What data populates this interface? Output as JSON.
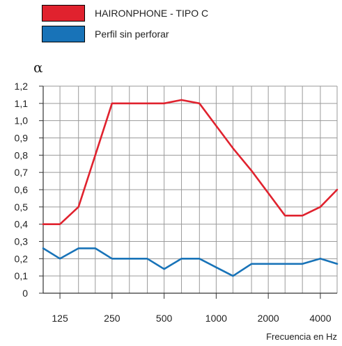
{
  "colors": {
    "red": "#e0222e",
    "blue": "#1873b8",
    "grid": "#9a9a9a",
    "axis": "#333333"
  },
  "chart_data": {
    "type": "line",
    "ylabel": "α",
    "xlabel": "Frecuencia en Hz",
    "ylim": [
      0,
      1.2
    ],
    "y_ticks": [
      "1,2",
      "1,1",
      "1,0",
      "0,9",
      "0,8",
      "0,7",
      "0,6",
      "0,5",
      "0,4",
      "0,3",
      "0,2",
      "0,1",
      "0"
    ],
    "x_tick_labels": [
      "125",
      "250",
      "500",
      "1000",
      "2000",
      "4000"
    ],
    "grid": true,
    "legend_position": "top-left",
    "x": [
      100,
      125,
      160,
      200,
      250,
      315,
      400,
      500,
      630,
      800,
      1000,
      1250,
      1600,
      2000,
      2500,
      3150,
      4000,
      5000
    ],
    "series": [
      {
        "name": "HAIRONPHONE - TIPO C",
        "color": "red",
        "values": [
          0.4,
          0.4,
          0.5,
          0.8,
          1.1,
          1.1,
          1.1,
          1.1,
          1.12,
          1.1,
          0.97,
          0.84,
          0.71,
          0.58,
          0.45,
          0.45,
          0.5,
          0.6
        ]
      },
      {
        "name": "Perfil sin perforar",
        "color": "blue",
        "values": [
          0.26,
          0.2,
          0.26,
          0.26,
          0.2,
          0.2,
          0.2,
          0.14,
          0.2,
          0.2,
          0.15,
          0.1,
          0.17,
          0.17,
          0.17,
          0.17,
          0.2,
          0.17
        ]
      }
    ]
  }
}
